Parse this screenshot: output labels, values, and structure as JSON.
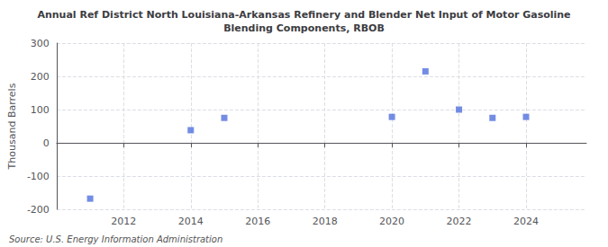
{
  "chart_data": {
    "type": "scatter",
    "title": "Annual Ref District North Louisiana-Arkansas Refinery and Blender Net Input of Motor Gasoline\nBlending Components, RBOB",
    "ylabel": "Thousand Barrels",
    "source": "Source: U.S. Energy Information Administration",
    "x": [
      2011,
      2014,
      2015,
      2020,
      2021,
      2022,
      2023,
      2024
    ],
    "values": [
      -168,
      38,
      75,
      78,
      215,
      100,
      75,
      78
    ],
    "xlim": [
      2010.0,
      2025.8
    ],
    "ylim": [
      -200,
      300
    ],
    "xticks": [
      2012,
      2014,
      2016,
      2018,
      2020,
      2022,
      2024
    ],
    "yticks": [
      -200,
      -100,
      0,
      100,
      200,
      300
    ],
    "marker": "square",
    "grid": true
  }
}
